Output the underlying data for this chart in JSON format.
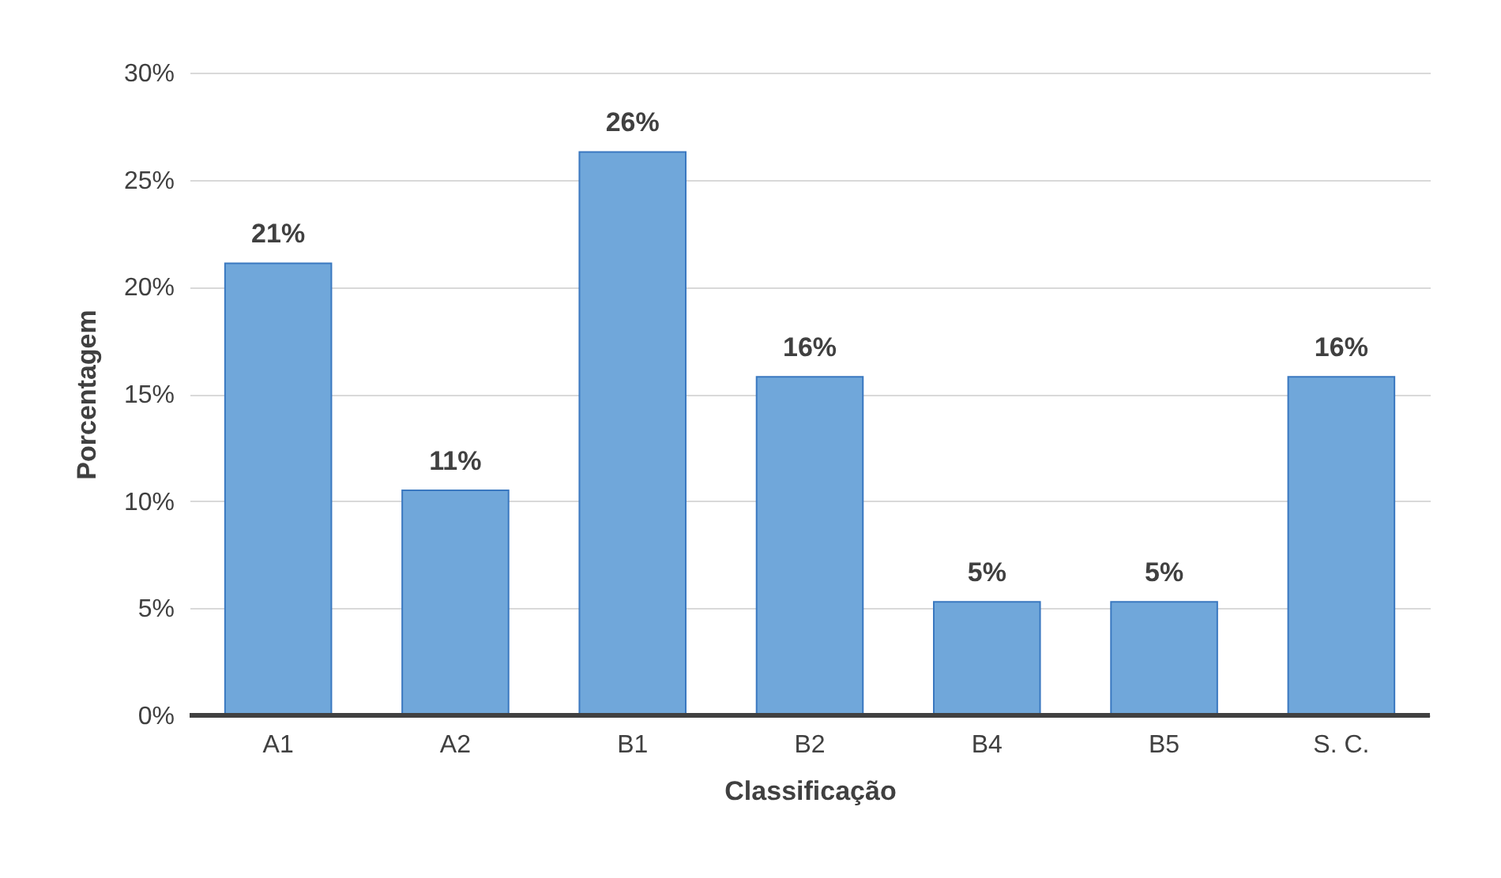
{
  "chart_data": {
    "type": "bar",
    "xlabel": "Classificação",
    "ylabel": "Porcentagem",
    "categories": [
      "A1",
      "A2",
      "B1",
      "B2",
      "B4",
      "B5",
      "S. C."
    ],
    "values": [
      21.1,
      10.5,
      26.3,
      15.8,
      5.3,
      5.3,
      15.8
    ],
    "value_labels": [
      "21%",
      "11%",
      "26%",
      "16%",
      "5%",
      "5%",
      "16%"
    ],
    "color": "#70a7da",
    "ylim": [
      0,
      30
    ],
    "yticks": [
      {
        "value": 0,
        "label": "0%"
      },
      {
        "value": 5,
        "label": "5%"
      },
      {
        "value": 10,
        "label": "10%"
      },
      {
        "value": 15,
        "label": "15%"
      },
      {
        "value": 20,
        "label": "20%"
      },
      {
        "value": 25,
        "label": "25%"
      },
      {
        "value": 30,
        "label": "30%"
      }
    ],
    "grid": "y"
  }
}
